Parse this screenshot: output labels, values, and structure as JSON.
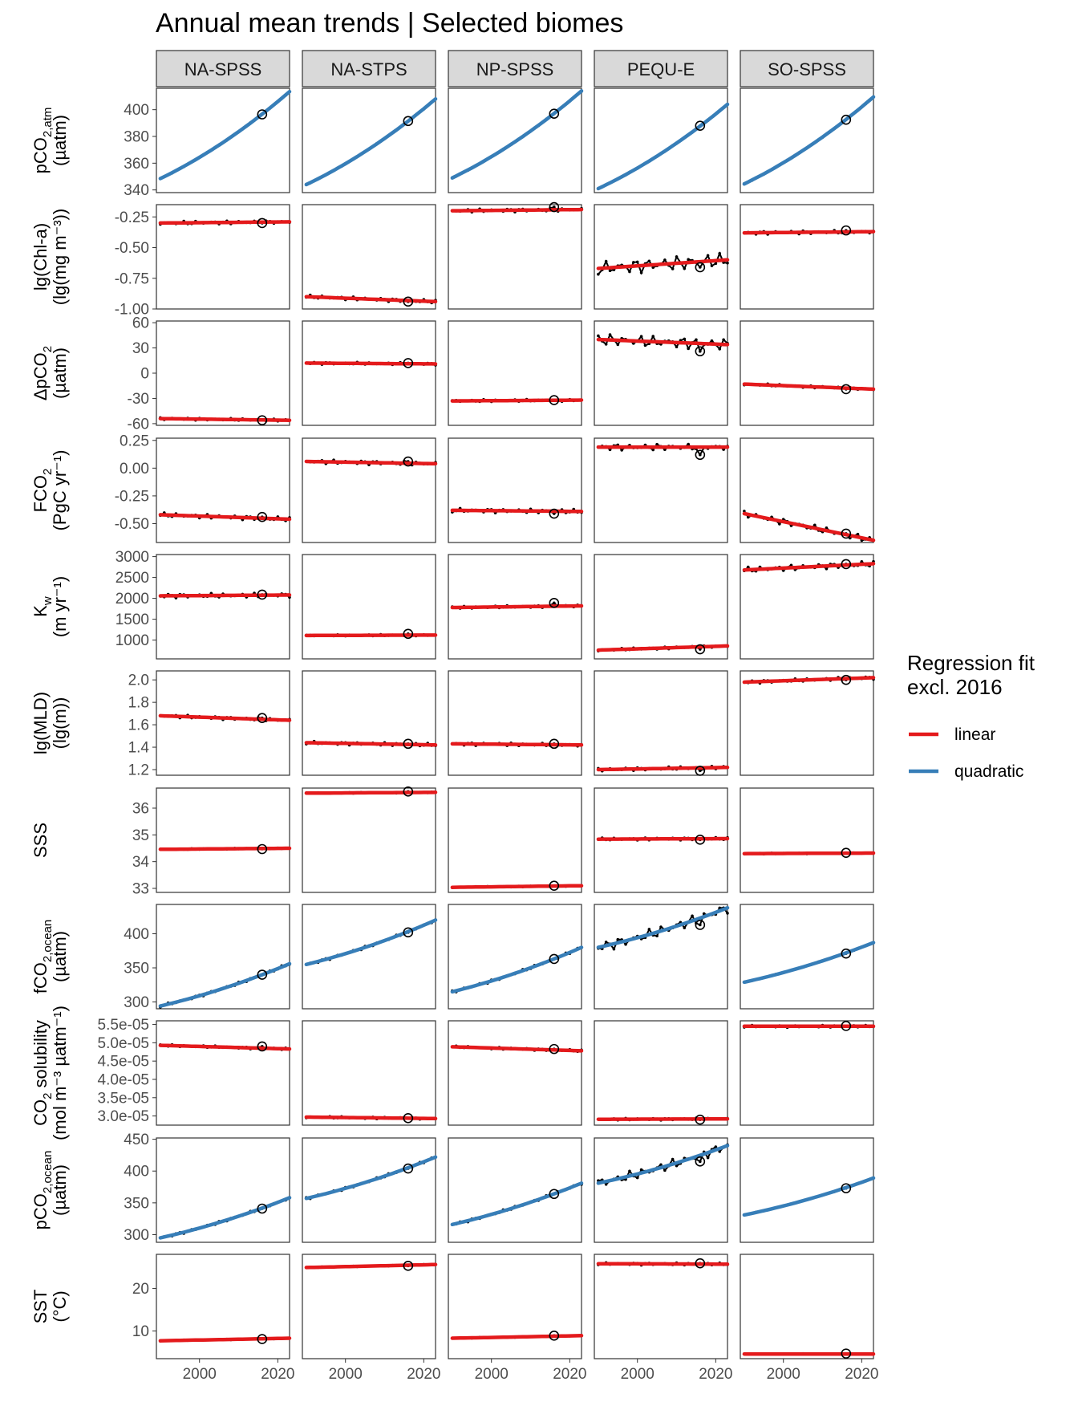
{
  "chart_data": {
    "type": "line",
    "title": "Annual mean trends | Selected biomes",
    "layout": "faceted grid: rows = variables, columns = biomes",
    "columns": [
      "NA-SPSS",
      "NA-STPS",
      "NP-SPSS",
      "PEQU-E",
      "SO-SPSS"
    ],
    "x": {
      "range": [
        1989,
        2023
      ],
      "ticks": [
        2000,
        2020
      ],
      "tick_labels": [
        "2000",
        "2020"
      ],
      "series_years": [
        1990,
        1991,
        1992,
        1993,
        1994,
        1995,
        1996,
        1997,
        1998,
        1999,
        2000,
        2001,
        2002,
        2003,
        2004,
        2005,
        2006,
        2007,
        2008,
        2009,
        2010,
        2011,
        2012,
        2013,
        2014,
        2015,
        2016,
        2017,
        2018,
        2019,
        2020,
        2021,
        2022,
        2023
      ],
      "highlighted_year": 2016
    },
    "legend": {
      "title": "Regression fit\nexcl. 2016",
      "position": "right",
      "items": [
        {
          "label": "linear",
          "color": "#e41a1c"
        },
        {
          "label": "quadratic",
          "color": "#377eb8"
        }
      ]
    },
    "colors": {
      "observed": "#000000",
      "linear": "#e41a1c",
      "quadratic": "#377eb8",
      "strip_fill": "#d9d9d9"
    },
    "rows": [
      {
        "ylabel": "pCO2,atm (µatm)",
        "ylabel_main": "pCO",
        "ylabel_sub": "2,atm",
        "ylabel_line2": "(µatm)",
        "ylim": [
          338,
          416
        ],
        "ticks": [
          340,
          360,
          380,
          400
        ],
        "tick_labels": [
          "340",
          "360",
          "380",
          "400"
        ],
        "fit": "quadratic",
        "noise": 0.3,
        "panels": [
          {
            "start": 348.5,
            "end": 413.5,
            "value_2016": 396.5
          },
          {
            "start": 344,
            "end": 408,
            "value_2016": 391.5
          },
          {
            "start": 349,
            "end": 414,
            "value_2016": 397
          },
          {
            "start": 341,
            "end": 404,
            "value_2016": 388
          },
          {
            "start": 344.5,
            "end": 409.5,
            "value_2016": 392.5
          }
        ]
      },
      {
        "ylabel": "lg(Chl-a) (lg(mg m-3))",
        "ylabel_main": "lg(Chl-a)",
        "ylabel_sub": "",
        "ylabel_line2": "(lg(mg m⁻³))",
        "ylim": [
          -1.0,
          -0.15
        ],
        "ticks": [
          -1.0,
          -0.75,
          -0.5,
          -0.25
        ],
        "tick_labels": [
          "-1.00",
          "-0.75",
          "-0.50",
          "-0.25"
        ],
        "fit": "linear",
        "noise": 0.015,
        "panels": [
          {
            "start": -0.3,
            "end": -0.29,
            "value_2016": -0.3
          },
          {
            "start": -0.9,
            "end": -0.94,
            "value_2016": -0.94
          },
          {
            "start": -0.2,
            "end": -0.19,
            "value_2016": -0.17
          },
          {
            "start": -0.67,
            "end": -0.6,
            "value_2016": -0.66,
            "noise": 0.06
          },
          {
            "start": -0.38,
            "end": -0.37,
            "value_2016": -0.36
          }
        ]
      },
      {
        "ylabel": "ΔpCO2 (µatm)",
        "ylabel_main": "ΔpCO",
        "ylabel_sub": "2",
        "ylabel_line2": "(µatm)",
        "ylim": [
          -62,
          62
        ],
        "ticks": [
          -60,
          -30,
          0,
          30,
          60
        ],
        "tick_labels": [
          "-60",
          "-30",
          "0",
          "30",
          "60"
        ],
        "fit": "linear",
        "noise": 1.5,
        "panels": [
          {
            "start": -54,
            "end": -56,
            "value_2016": -56
          },
          {
            "start": 12,
            "end": 11,
            "value_2016": 12
          },
          {
            "start": -33,
            "end": -32,
            "value_2016": -32
          },
          {
            "start": 40,
            "end": 34,
            "value_2016": 26,
            "noise": 7
          },
          {
            "start": -13,
            "end": -19,
            "value_2016": -19
          }
        ]
      },
      {
        "ylabel": "FCO2 (PgC yr-1)",
        "ylabel_main": "FCO",
        "ylabel_sub": "2",
        "ylabel_line2": "(PgC yr⁻¹)",
        "ylim": [
          -0.67,
          0.27
        ],
        "ticks": [
          -0.5,
          -0.25,
          0.0,
          0.25
        ],
        "tick_labels": [
          "-0.50",
          "-0.25",
          "0.00",
          "0.25"
        ],
        "fit": "linear",
        "noise": 0.02,
        "panels": [
          {
            "start": -0.42,
            "end": -0.46,
            "value_2016": -0.44
          },
          {
            "start": 0.06,
            "end": 0.04,
            "value_2016": 0.06
          },
          {
            "start": -0.38,
            "end": -0.39,
            "value_2016": -0.41
          },
          {
            "start": 0.19,
            "end": 0.19,
            "value_2016": 0.12,
            "noise": 0.03
          },
          {
            "start": -0.41,
            "end": -0.65,
            "value_2016": -0.59,
            "noise": 0.03
          }
        ]
      },
      {
        "ylabel": "Kw (m yr-1)",
        "ylabel_main": "K",
        "ylabel_sub": "w",
        "ylabel_line2": "(m yr⁻¹)",
        "ylim": [
          550,
          3050
        ],
        "ticks": [
          1000,
          1500,
          2000,
          2500,
          3000
        ],
        "tick_labels": [
          "1000",
          "1500",
          "2000",
          "2500",
          "3000"
        ],
        "fit": "linear",
        "noise": 55,
        "panels": [
          {
            "start": 2060,
            "end": 2080,
            "value_2016": 2090
          },
          {
            "start": 1110,
            "end": 1120,
            "value_2016": 1150,
            "noise": 20
          },
          {
            "start": 1780,
            "end": 1820,
            "value_2016": 1890,
            "noise": 30
          },
          {
            "start": 760,
            "end": 860,
            "value_2016": 780,
            "noise": 30
          },
          {
            "start": 2680,
            "end": 2830,
            "value_2016": 2820,
            "noise": 70
          }
        ]
      },
      {
        "ylabel": "lg(MLD) (lg(m))",
        "ylabel_main": "lg(MLD)",
        "ylabel_sub": "",
        "ylabel_line2": "(lg(m))",
        "ylim": [
          1.15,
          2.08
        ],
        "ticks": [
          1.2,
          1.4,
          1.6,
          1.8,
          2.0
        ],
        "tick_labels": [
          "1.2",
          "1.4",
          "1.6",
          "1.8",
          "2.0"
        ],
        "fit": "linear",
        "noise": 0.015,
        "panels": [
          {
            "start": 1.68,
            "end": 1.64,
            "value_2016": 1.66
          },
          {
            "start": 1.44,
            "end": 1.42,
            "value_2016": 1.43
          },
          {
            "start": 1.43,
            "end": 1.42,
            "value_2016": 1.43
          },
          {
            "start": 1.2,
            "end": 1.22,
            "value_2016": 1.19
          },
          {
            "start": 1.98,
            "end": 2.02,
            "value_2016": 2.0
          }
        ]
      },
      {
        "ylabel": "SSS",
        "ylabel_main": "SSS",
        "ylabel_sub": "",
        "ylabel_line2": "",
        "ylim": [
          32.85,
          36.75
        ],
        "ticks": [
          33,
          34,
          35,
          36
        ],
        "tick_labels": [
          "33",
          "34",
          "35",
          "36"
        ],
        "fit": "linear",
        "noise": 0.02,
        "panels": [
          {
            "start": 34.46,
            "end": 34.5,
            "value_2016": 34.47
          },
          {
            "start": 36.56,
            "end": 36.59,
            "value_2016": 36.62
          },
          {
            "start": 33.04,
            "end": 33.1,
            "value_2016": 33.1
          },
          {
            "start": 34.84,
            "end": 34.86,
            "value_2016": 34.82,
            "noise": 0.05
          },
          {
            "start": 34.3,
            "end": 34.32,
            "value_2016": 34.33
          }
        ]
      },
      {
        "ylabel": "fCO2,ocean (µatm)",
        "ylabel_main": "fCO",
        "ylabel_sub": "2,ocean",
        "ylabel_line2": "(µatm)",
        "ylim": [
          290,
          443
        ],
        "ticks": [
          300,
          350,
          400
        ],
        "tick_labels": [
          "300",
          "350",
          "400"
        ],
        "fit": "quadratic",
        "noise": 2,
        "panels": [
          {
            "start": 294,
            "end": 356,
            "value_2016": 340
          },
          {
            "start": 355,
            "end": 420,
            "value_2016": 402
          },
          {
            "start": 315,
            "end": 380,
            "value_2016": 363
          },
          {
            "start": 380,
            "end": 438,
            "value_2016": 413,
            "noise": 8
          },
          {
            "start": 329,
            "end": 387,
            "value_2016": 371,
            "noise": 0.5
          }
        ]
      },
      {
        "ylabel": "CO2 solubility (mol m-3 µatm-1)",
        "ylabel_main": "CO",
        "ylabel_sub": "2",
        "ylabel_main_tail": " solubility",
        "ylabel_line2": "(mol m⁻³ µatm⁻¹)",
        "ylim": [
          2.75e-05,
          5.6e-05
        ],
        "ticks": [
          3e-05,
          3.5e-05,
          4e-05,
          4.5e-05,
          5e-05,
          5.5e-05
        ],
        "tick_labels": [
          "3.0e-05",
          "3.5e-05",
          "4.0e-05",
          "4.5e-05",
          "5.0e-05",
          "5.5e-05"
        ],
        "fit": "linear",
        "noise": 3e-07,
        "panels": [
          {
            "start": 4.93e-05,
            "end": 4.83e-05,
            "value_2016": 4.9e-05
          },
          {
            "start": 2.97e-05,
            "end": 2.93e-05,
            "value_2016": 2.94e-05
          },
          {
            "start": 4.89e-05,
            "end": 4.78e-05,
            "value_2016": 4.83e-05
          },
          {
            "start": 2.91e-05,
            "end": 2.92e-05,
            "value_2016": 2.9e-05
          },
          {
            "start": 5.45e-05,
            "end": 5.45e-05,
            "value_2016": 5.46e-05
          }
        ]
      },
      {
        "ylabel": "pCO2,ocean (µatm)",
        "ylabel_main": "pCO",
        "ylabel_sub": "2,ocean",
        "ylabel_line2": "(µatm)",
        "ylim": [
          288,
          452
        ],
        "ticks": [
          300,
          350,
          400,
          450
        ],
        "tick_labels": [
          "300",
          "350",
          "400",
          "450"
        ],
        "fit": "quadratic",
        "noise": 2,
        "panels": [
          {
            "start": 295,
            "end": 358,
            "value_2016": 341
          },
          {
            "start": 357,
            "end": 422,
            "value_2016": 404
          },
          {
            "start": 316,
            "end": 381,
            "value_2016": 364
          },
          {
            "start": 381,
            "end": 440,
            "value_2016": 415,
            "noise": 8
          },
          {
            "start": 331,
            "end": 389,
            "value_2016": 373,
            "noise": 0.5
          }
        ]
      },
      {
        "ylabel": "SST (°C)",
        "ylabel_main": "SST",
        "ylabel_sub": "",
        "ylabel_line2": "(°C)",
        "ylim": [
          3.5,
          28
        ],
        "ticks": [
          10,
          20
        ],
        "tick_labels": [
          "10",
          "20"
        ],
        "fit": "linear",
        "noise": 0.1,
        "panels": [
          {
            "start": 7.7,
            "end": 8.3,
            "value_2016": 8.1
          },
          {
            "start": 24.9,
            "end": 25.6,
            "value_2016": 25.3
          },
          {
            "start": 8.3,
            "end": 8.9,
            "value_2016": 8.9
          },
          {
            "start": 25.8,
            "end": 25.7,
            "value_2016": 25.9,
            "noise": 0.3
          },
          {
            "start": 4.6,
            "end": 4.6,
            "value_2016": 4.7
          }
        ]
      }
    ]
  }
}
